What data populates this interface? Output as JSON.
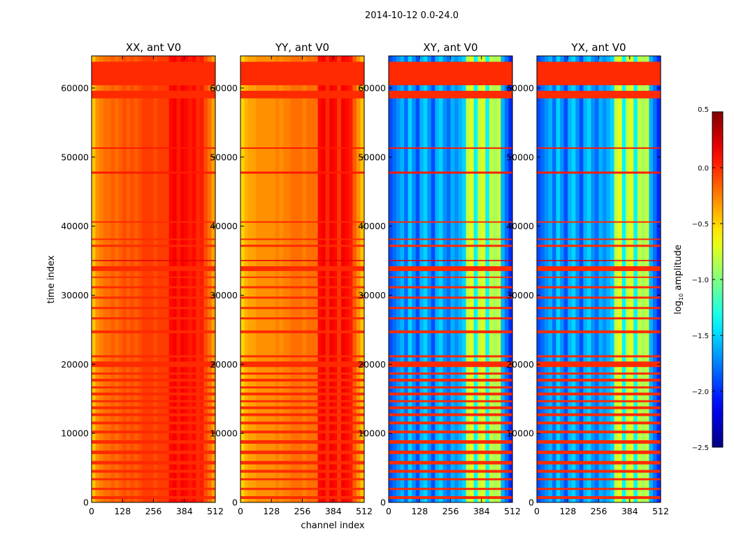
{
  "chart_data": {
    "type": "heatmap",
    "suptitle": "2014-10-12 0.0-24.0",
    "xlabel": "channel index",
    "ylabel": "time index",
    "xlim": [
      0,
      512
    ],
    "ylim": [
      0,
      64650
    ],
    "xticks": [
      "0",
      "128",
      "256",
      "384",
      "512"
    ],
    "yticks": [
      "0",
      "10000",
      "20000",
      "30000",
      "40000",
      "50000",
      "60000"
    ],
    "colorbar": {
      "label": "log10 amplitude",
      "label_main": "log",
      "label_sub": "10",
      "label_rest": " amplitude",
      "range": [
        -2.5,
        0.5
      ],
      "colormap": "jet",
      "ticks": [
        "0.5",
        "0.0",
        "−0.5",
        "−1.0",
        "−1.5",
        "−2.0",
        "−2.5"
      ]
    },
    "panels": [
      {
        "title": "XX, ant V0",
        "channel_profile": [
          -0.45,
          -0.3,
          -0.25,
          -0.2,
          -0.2,
          -0.15,
          -0.2,
          -0.15,
          -0.1,
          -0.15,
          -0.1,
          -0.15,
          -0.1,
          -0.05,
          -0.05,
          -0.05,
          -0.1,
          -0.05,
          -0.05,
          -0.05,
          0.1,
          0.15,
          0.05,
          0.15,
          0.1,
          0.05,
          0.1,
          0.0,
          0.05,
          -0.1,
          -0.2,
          -0.35
        ]
      },
      {
        "title": "YY, ant V0",
        "channel_profile": [
          -0.5,
          -0.4,
          -0.35,
          -0.35,
          -0.3,
          -0.3,
          -0.3,
          -0.3,
          -0.3,
          -0.25,
          -0.3,
          -0.25,
          -0.25,
          -0.2,
          -0.2,
          -0.2,
          -0.25,
          -0.2,
          -0.2,
          -0.2,
          0.1,
          0.15,
          0.0,
          0.15,
          0.1,
          -0.05,
          0.15,
          0.1,
          0.05,
          -0.15,
          -0.3,
          -0.45
        ]
      },
      {
        "title": "XY, ant V0",
        "channel_profile": [
          -1.9,
          -1.8,
          -1.7,
          -1.6,
          -1.8,
          -1.5,
          -1.7,
          -1.9,
          -1.6,
          -1.5,
          -1.7,
          -1.9,
          -1.6,
          -1.5,
          -1.7,
          -1.8,
          -1.6,
          -1.7,
          -1.6,
          -1.5,
          -0.8,
          -0.7,
          -1.4,
          -0.8,
          -0.7,
          -1.4,
          -0.8,
          -0.9,
          -0.8,
          -1.6,
          -1.8,
          -2.0
        ]
      },
      {
        "title": "YX, ant V0",
        "channel_profile": [
          -1.9,
          -1.8,
          -1.7,
          -1.6,
          -1.8,
          -1.5,
          -1.7,
          -1.9,
          -1.6,
          -1.5,
          -1.7,
          -1.9,
          -1.6,
          -1.5,
          -1.7,
          -1.8,
          -1.6,
          -1.7,
          -1.6,
          -1.5,
          -0.8,
          -0.7,
          -1.4,
          -0.8,
          -0.7,
          -1.4,
          -0.8,
          -0.9,
          -0.8,
          -1.6,
          -1.8,
          -2.0
        ]
      }
    ],
    "flagged_bands": [
      [
        60400,
        63800,
        0.0
      ],
      [
        58500,
        59600,
        0.0
      ],
      [
        51200,
        51400,
        0.05
      ],
      [
        47600,
        47900,
        0.05
      ],
      [
        40500,
        40700,
        0.0
      ],
      [
        38000,
        38200,
        0.0
      ],
      [
        37000,
        37300,
        0.0
      ],
      [
        35000,
        35100,
        0.2
      ],
      [
        33500,
        34200,
        0.0
      ],
      [
        32500,
        32700,
        0.0
      ],
      [
        31000,
        31300,
        0.0
      ],
      [
        29500,
        29800,
        0.0
      ],
      [
        28000,
        28300,
        0.0
      ],
      [
        26500,
        26800,
        0.0
      ],
      [
        24500,
        24900,
        0.0
      ],
      [
        21000,
        21300,
        0.0
      ],
      [
        19600,
        20400,
        0.0
      ],
      [
        18500,
        18800,
        0.0
      ],
      [
        17500,
        17900,
        0.0
      ],
      [
        16500,
        16800,
        0.0
      ],
      [
        15500,
        15900,
        0.0
      ],
      [
        14500,
        14800,
        0.0
      ],
      [
        13500,
        13900,
        0.0
      ],
      [
        12500,
        12900,
        0.0
      ],
      [
        11300,
        11700,
        0.0
      ],
      [
        10000,
        10400,
        0.0
      ],
      [
        8500,
        9000,
        0.0
      ],
      [
        7000,
        7500,
        0.0
      ],
      [
        5500,
        6000,
        0.0
      ],
      [
        4300,
        4700,
        0.0
      ],
      [
        3200,
        3500,
        0.0
      ],
      [
        1800,
        2100,
        0.0
      ],
      [
        500,
        900,
        0.0
      ]
    ]
  }
}
